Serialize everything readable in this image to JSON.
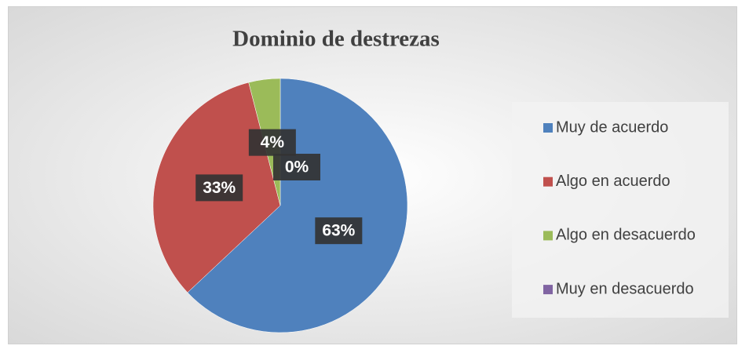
{
  "chart_data": {
    "type": "pie",
    "title": "Dominio de destrezas",
    "categories": [
      "Muy de acuerdo",
      "Algo en acuerdo",
      "Algo en desacuerdo",
      "Muy en desacuerdo"
    ],
    "values": [
      63,
      33,
      4,
      0
    ],
    "value_labels": [
      "63%",
      "33%",
      "4%",
      "0%"
    ],
    "colors": [
      "#4f81bd",
      "#c0504d",
      "#9bbb59",
      "#8064a2"
    ],
    "legend": "right"
  }
}
